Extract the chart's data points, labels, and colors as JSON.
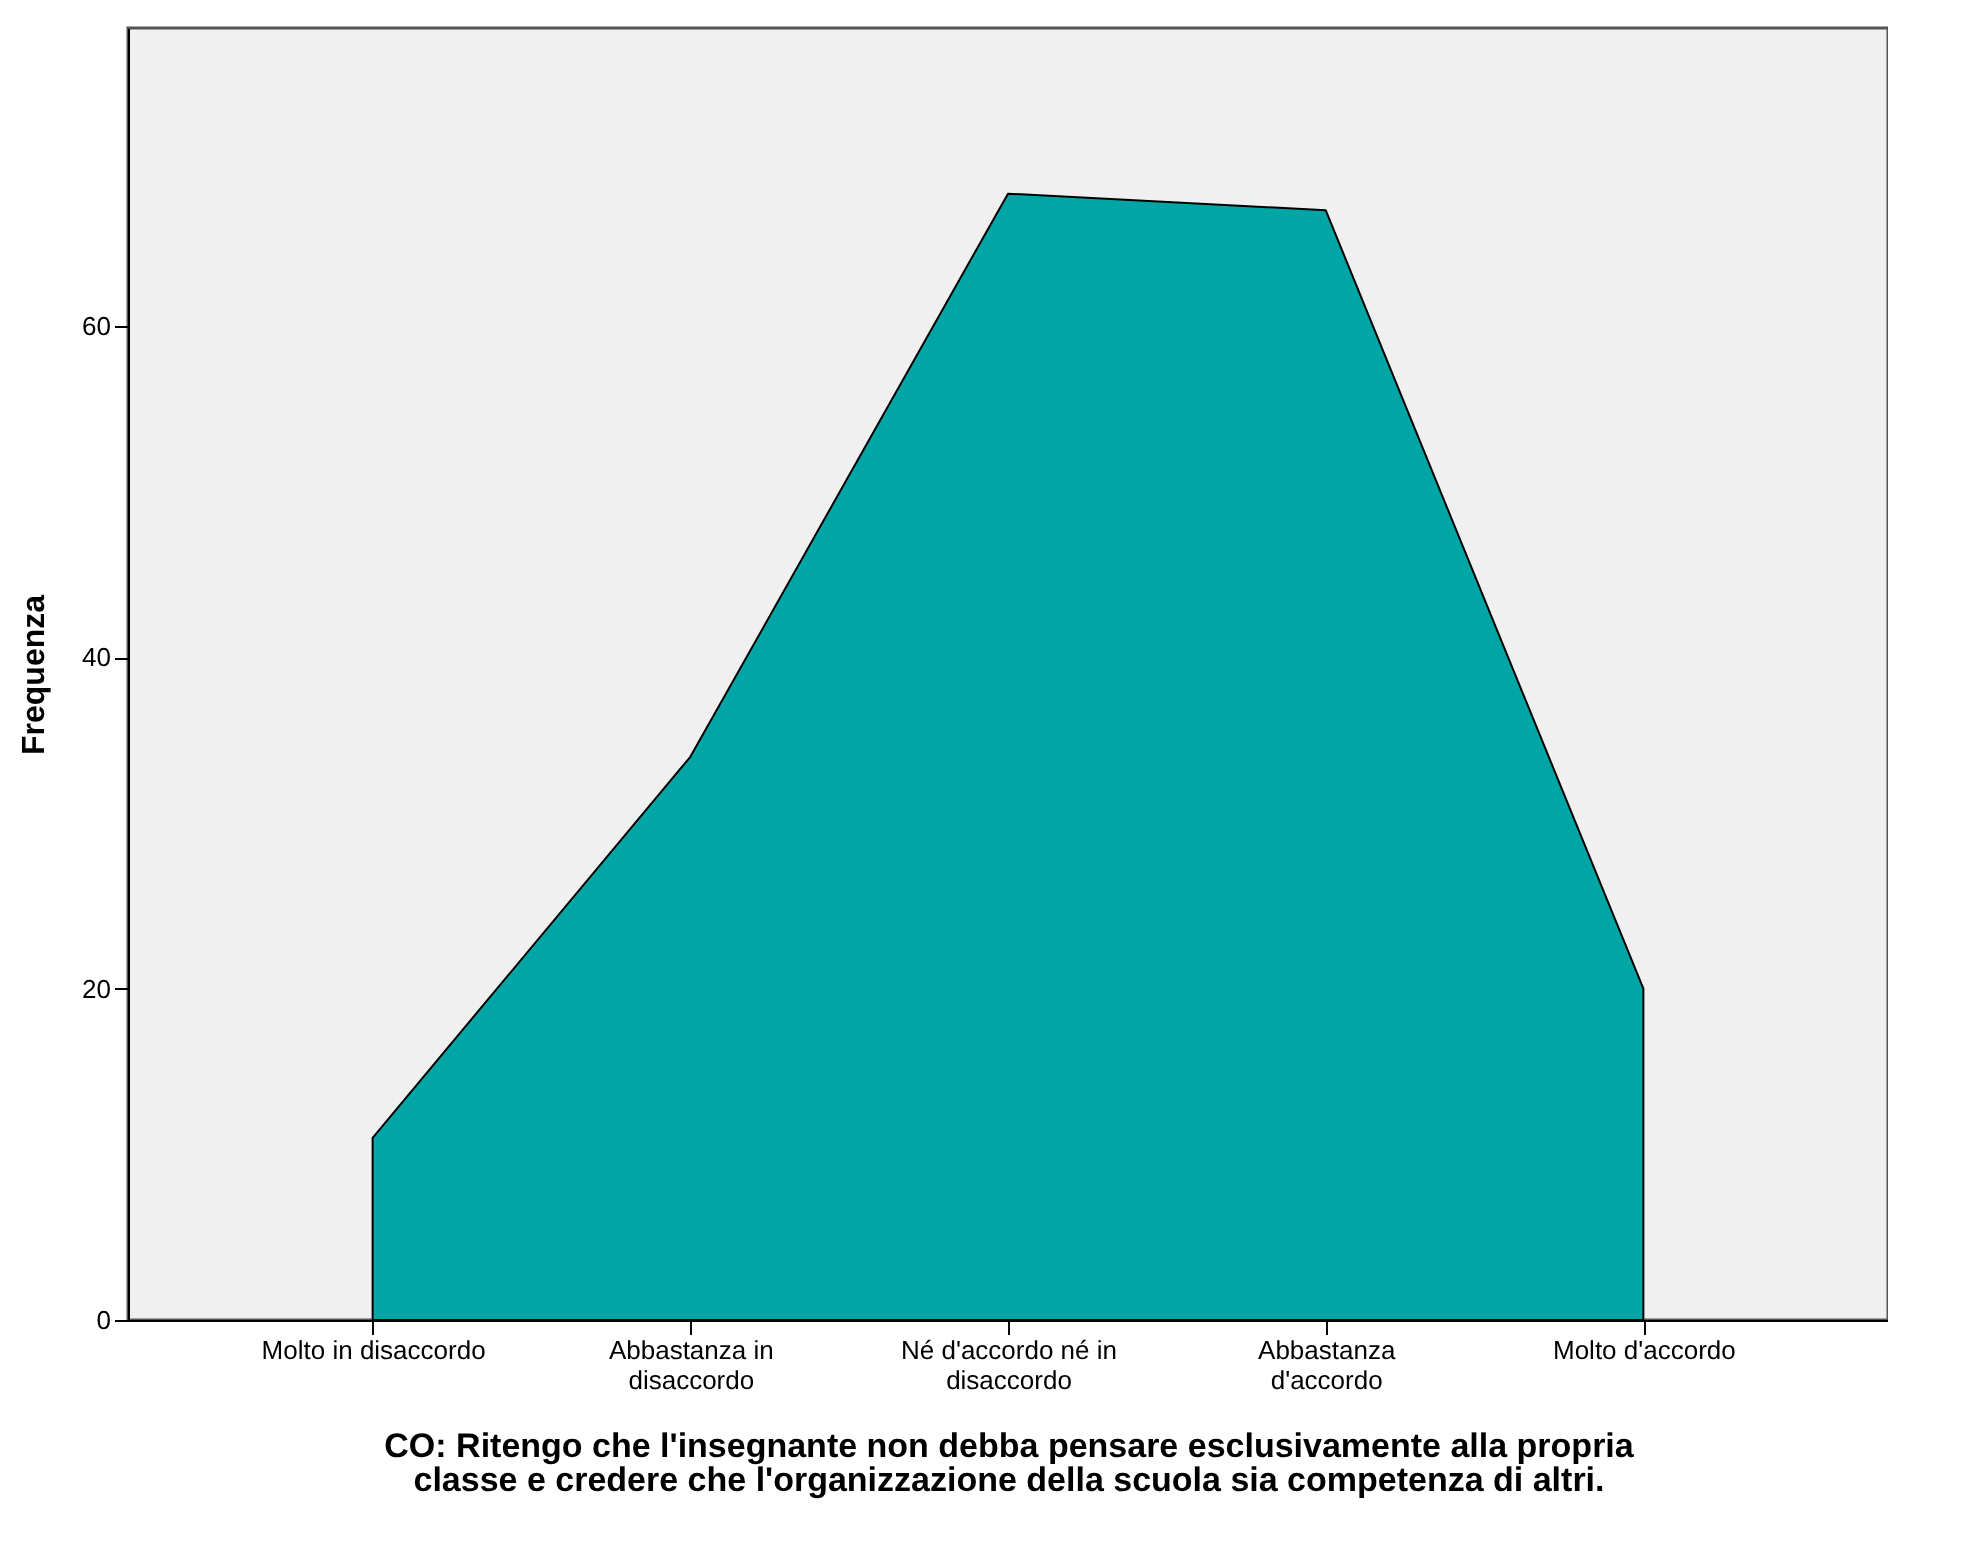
{
  "chart_data": {
    "type": "area",
    "xlabel": "CO: Ritengo che l'insegnante non debba pensare esclusivamente alla propria classe e credere che l'organizzazione della scuola sia competenza di altri.",
    "ylabel": "Frequenza",
    "categories": [
      "Molto in disaccordo",
      "Abbastanza in disaccordo",
      "Né d'accordo né in disaccordo",
      "Abbastanza d'accordo",
      "Molto d'accordo"
    ],
    "values": [
      11,
      34,
      68,
      67,
      20
    ],
    "color": "#00a5a5",
    "ylim": [
      0,
      78
    ],
    "yticks": [
      0,
      20,
      40,
      60
    ],
    "grid": false
  }
}
